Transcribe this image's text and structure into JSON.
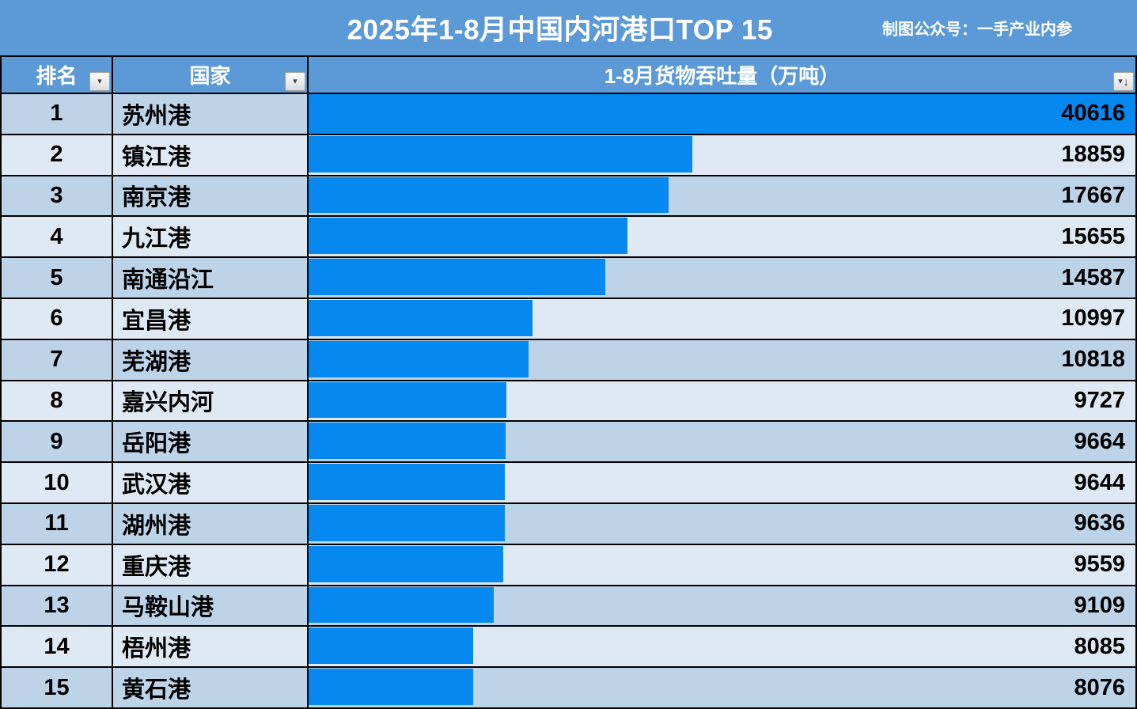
{
  "banner": {
    "title": "2025年1-8月中国内河港口TOP 15",
    "credit": "制图公众号：一手产业内参"
  },
  "header": {
    "rank_label": "排名",
    "name_label": "国家",
    "value_label": "1-8月货物吞吐量（万吨）",
    "filter_icon": "▾",
    "sort_arrow_icon": "↓"
  },
  "rows": [
    {
      "rank": "1",
      "name": "苏州港",
      "value": 40616
    },
    {
      "rank": "2",
      "name": "镇江港",
      "value": 18859
    },
    {
      "rank": "3",
      "name": "南京港",
      "value": 17667
    },
    {
      "rank": "4",
      "name": "九江港",
      "value": 15655
    },
    {
      "rank": "5",
      "name": "南通沿江",
      "value": 14587
    },
    {
      "rank": "6",
      "name": "宜昌港",
      "value": 10997
    },
    {
      "rank": "7",
      "name": "芜湖港",
      "value": 10818
    },
    {
      "rank": "8",
      "name": "嘉兴内河",
      "value": 9727
    },
    {
      "rank": "9",
      "name": "岳阳港",
      "value": 9664
    },
    {
      "rank": "10",
      "name": "武汉港",
      "value": 9644
    },
    {
      "rank": "11",
      "name": "湖州港",
      "value": 9636
    },
    {
      "rank": "12",
      "name": "重庆港",
      "value": 9559
    },
    {
      "rank": "13",
      "name": "马鞍山港",
      "value": 9109
    },
    {
      "rank": "14",
      "name": "梧州港",
      "value": 8085
    },
    {
      "rank": "15",
      "name": "黄石港",
      "value": 8076
    }
  ],
  "chart_data": {
    "type": "bar",
    "orientation": "horizontal",
    "title": "2025年1-8月中国内河港口TOP 15",
    "subtitle": "制图公众号：一手产业内参",
    "categories": [
      "苏州港",
      "镇江港",
      "南京港",
      "九江港",
      "南通沿江",
      "宜昌港",
      "芜湖港",
      "嘉兴内河",
      "岳阳港",
      "武汉港",
      "湖州港",
      "重庆港",
      "马鞍山港",
      "梧州港",
      "黄石港"
    ],
    "values": [
      40616,
      18859,
      17667,
      15655,
      14587,
      10997,
      10818,
      9727,
      9664,
      9644,
      9636,
      9559,
      9109,
      8085,
      8076
    ],
    "value_axis_label": "1-8月货物吞吐量（万吨）",
    "xlim": [
      0,
      40616
    ],
    "grid": false,
    "legend": false,
    "bar_color": "#0589f0"
  },
  "colors": {
    "banner": "#5b9ad6",
    "header_row": "#5b9ad6",
    "bar": "#0589f0",
    "row_odd": "#bdd3e8",
    "row_even": "#dee9f4",
    "border": "#000000",
    "header_text": "#ffffff",
    "body_text": "#000000"
  }
}
